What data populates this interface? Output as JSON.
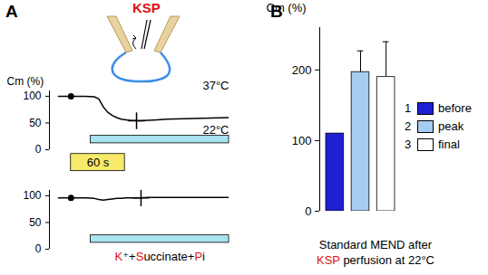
{
  "chart_data": [
    {
      "type": "line",
      "panel": "A",
      "inset_label": "KSP",
      "title": "37°C",
      "y_label": "Cm (%)",
      "x": [
        0,
        10,
        20,
        30,
        40,
        45,
        50,
        55,
        60,
        65,
        70,
        75,
        80,
        90,
        100,
        110,
        120,
        140,
        160,
        190
      ],
      "values": [
        100,
        100,
        100,
        100,
        99,
        95,
        80,
        70,
        64,
        60,
        57,
        56,
        55,
        54,
        55,
        56,
        57,
        58,
        59,
        60
      ],
      "color": "#000000",
      "markers": [
        {
          "x": 14,
          "y": 100,
          "marker": "dot"
        },
        {
          "x": 87,
          "y": 54,
          "marker": "cross"
        }
      ],
      "perfusion": {
        "start": 36,
        "end": 190,
        "label": "22°C",
        "color": "#a8e4ef"
      },
      "scale_bar": {
        "value": 60,
        "label": "60 s",
        "color": "#f7ea6a"
      },
      "xlim": [
        -10,
        190
      ],
      "ylim": [
        0,
        110
      ],
      "yticks": [
        0,
        50,
        100
      ],
      "tick_labels": "y"
    },
    {
      "type": "line",
      "x": [
        0,
        10,
        20,
        30,
        40,
        45,
        50,
        55,
        60,
        65,
        70,
        75,
        80,
        90,
        100,
        110,
        120,
        140,
        160,
        190
      ],
      "values": [
        96,
        96,
        96,
        96,
        95,
        93,
        92,
        93,
        94,
        95,
        95,
        96,
        96,
        96,
        97,
        97,
        97,
        97,
        97,
        97
      ],
      "color": "#000000",
      "markers": [
        {
          "x": 14,
          "y": 96,
          "marker": "dot"
        },
        {
          "x": 92,
          "y": 96,
          "marker": "cross"
        }
      ],
      "perfusion": {
        "start": 36,
        "end": 190,
        "label": "K⁺+Succinate+Pi",
        "color": "#a8e4ef"
      },
      "xlim": [
        -10,
        190
      ],
      "ylim": [
        0,
        110
      ],
      "yticks": [
        0,
        50,
        100
      ],
      "tick_labels": "y"
    },
    {
      "type": "bar",
      "panel": "B",
      "y_label": "Cm (%)",
      "categories": [
        "before",
        "peak",
        "final"
      ],
      "category_numbers": [
        1,
        2,
        3
      ],
      "values": [
        110,
        197,
        190
      ],
      "errors": [
        0,
        30,
        50
      ],
      "colors": [
        "#1f1fd6",
        "#a6cdef",
        "#ffffff"
      ],
      "ylim": [
        0,
        260
      ],
      "yticks": [
        0,
        100,
        200
      ],
      "tick_labels": "y",
      "legend": "right",
      "caption": [
        "Standard MEND after",
        "KSP perfusion at 22°C"
      ]
    }
  ]
}
